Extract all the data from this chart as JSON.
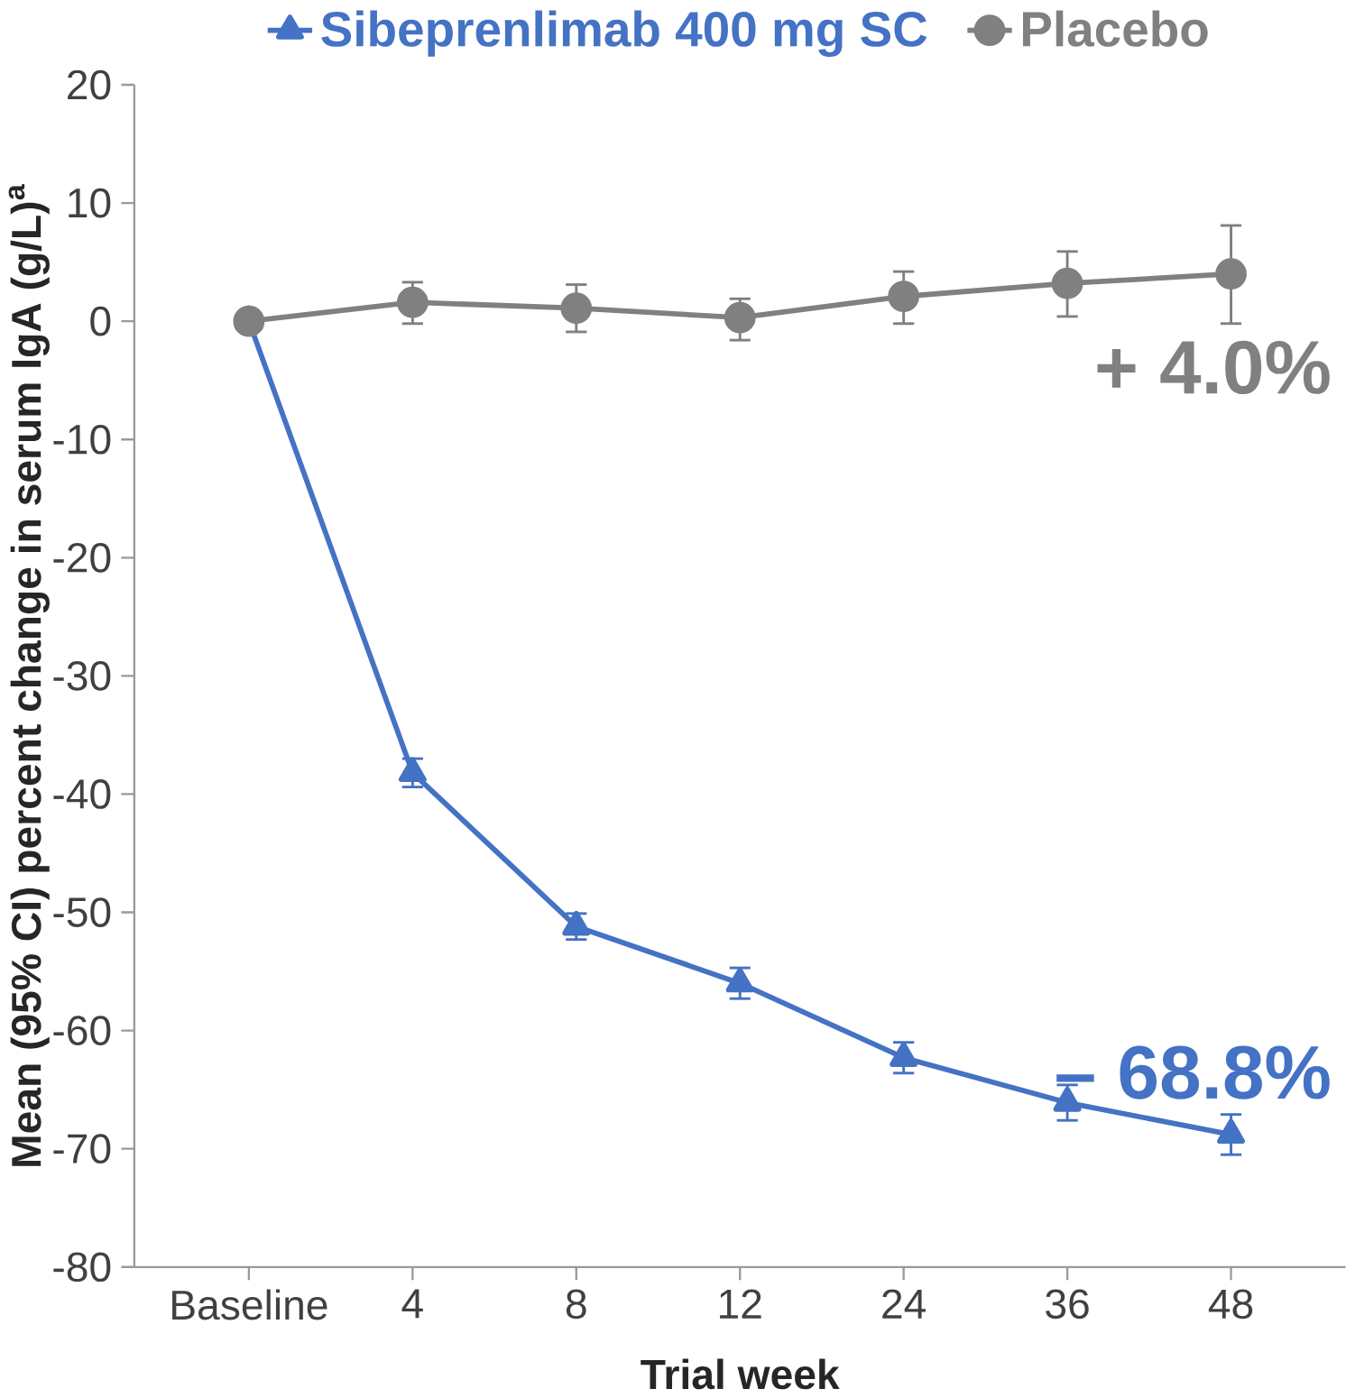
{
  "chart_data": {
    "type": "line",
    "xlabel": "Trial week",
    "ylabel": "Mean (95% CI) percent change in serum IgA (g/L)$^{a}$",
    "categories": [
      "Baseline",
      "4",
      "8",
      "12",
      "24",
      "36",
      "48"
    ],
    "series": [
      {
        "name": "Sibeprenlimab 400 mg SC",
        "color": "#4472c4",
        "marker": "triangle",
        "values": [
          0,
          -38.2,
          -51.2,
          -56.0,
          -62.3,
          -66.1,
          -68.8
        ],
        "errors": [
          null,
          1.2,
          1.1,
          1.3,
          1.3,
          1.5,
          1.7
        ]
      },
      {
        "name": "Placebo",
        "color": "#808080",
        "marker": "circle",
        "values": [
          0,
          1.6,
          1.1,
          0.3,
          2.1,
          3.2,
          4.0
        ],
        "errors": [
          null,
          [
            -0.2,
            3.3
          ],
          [
            -0.9,
            3.1
          ],
          [
            -1.6,
            1.9
          ],
          [
            -0.2,
            4.2
          ],
          [
            0.4,
            5.9
          ],
          [
            -0.2,
            8.1
          ]
        ]
      }
    ],
    "ylim": [
      -80,
      20
    ],
    "yticks": [
      -80,
      -70,
      -60,
      -50,
      -40,
      -30,
      -20,
      -10,
      0,
      10,
      20
    ],
    "legend": "top",
    "grid": false,
    "annotations": [
      {
        "text": "– 68.8%",
        "x": "48",
        "y": -68.8
      },
      {
        "text": "+ 4.0%",
        "x": "48",
        "y": 4.0
      }
    ]
  }
}
